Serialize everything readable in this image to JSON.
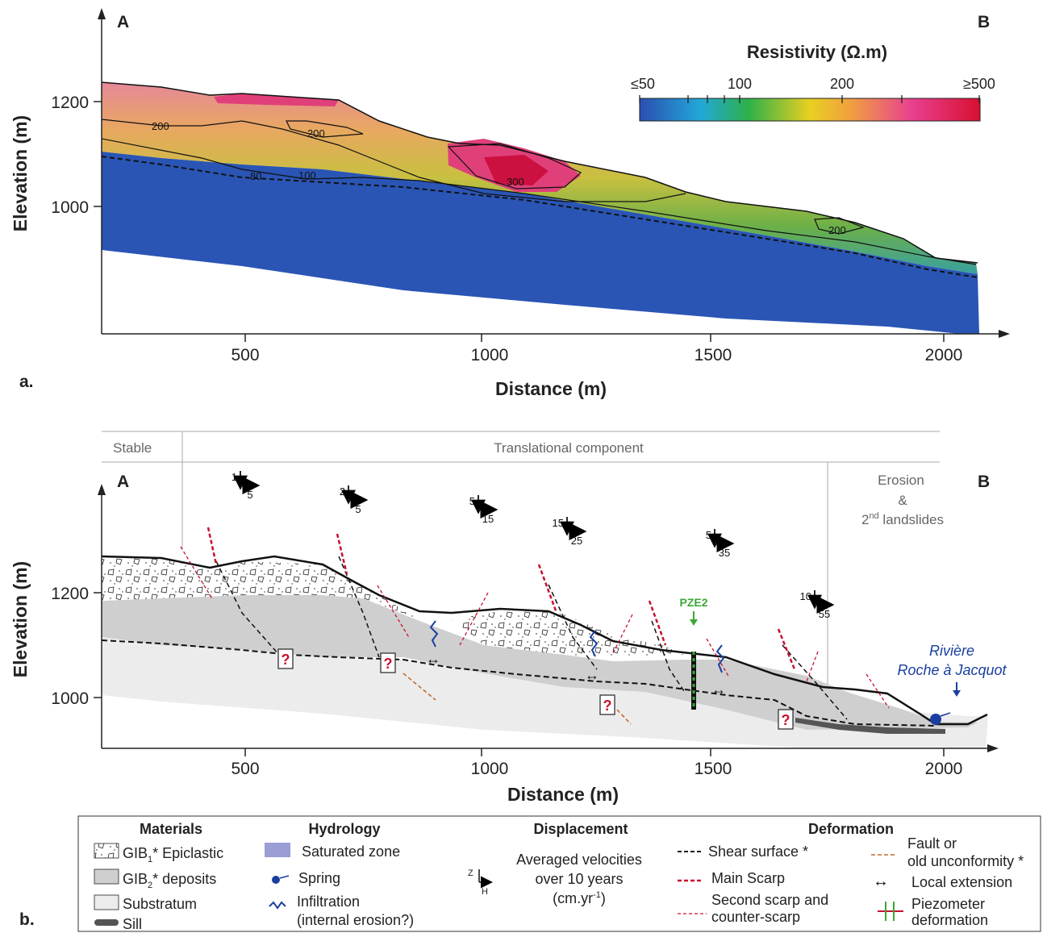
{
  "panel_a": {
    "panel_label": "a.",
    "end_a": "A",
    "end_b": "B",
    "y_axis_label": "Elevation (m)",
    "x_axis_label": "Distance (m)",
    "y_ticks": [
      "1200",
      "1000"
    ],
    "x_ticks": [
      "500",
      "1000",
      "1500",
      "2000"
    ],
    "colorbar": {
      "title": "Resistivity (Ω.m)",
      "tick_labels": [
        "≤50",
        "100",
        "200",
        "≥500"
      ],
      "colors": [
        "#2a4fb0",
        "#22a8d8",
        "#2eb04a",
        "#e8d020",
        "#f0a040",
        "#e84090",
        "#d81030"
      ]
    },
    "contour_labels": [
      "200",
      "200",
      "80",
      "100",
      "300",
      "200"
    ]
  },
  "panel_b": {
    "panel_label": "b.",
    "end_a": "A",
    "end_b": "B",
    "y_axis_label": "Elevation (m)",
    "x_axis_label": "Distance (m)",
    "y_ticks": [
      "1200",
      "1000"
    ],
    "x_ticks": [
      "500",
      "1000",
      "1500",
      "2000"
    ],
    "zones": {
      "stable": "Stable",
      "translational": "Translational component",
      "erosion_1": "Erosion",
      "erosion_2": "&",
      "erosion_3_super": "nd",
      "erosion_3_pre": "2",
      "erosion_3_post": " landslides"
    },
    "velocities": [
      {
        "z": "1",
        "h": "5"
      },
      {
        "z": "2",
        "h": "5"
      },
      {
        "z": "5",
        "h": "15"
      },
      {
        "z": "15",
        "h": "25"
      },
      {
        "z": "5",
        "h": "35"
      },
      {
        "z": "10",
        "h": "55"
      }
    ],
    "piezometer": "PZE2",
    "river_line1": "Rivière",
    "river_line2": "Roche à Jacquot",
    "question_mark": "?",
    "colors": {
      "gib2": "#cfcfcf",
      "substratum": "#ececec",
      "scarp": "#c8102e",
      "spring": "#1a3fa0",
      "piezometer": "#3aa835",
      "fault": "#c0682a"
    }
  },
  "legend": {
    "materials": {
      "title": "Materials",
      "gib1": "GIB",
      "gib1_sub": "1",
      "gib1_rest": "* Epiclastic",
      "gib2": "GIB",
      "gib2_sub": "2",
      "gib2_rest": "* deposits",
      "substratum": "Substratum",
      "sill": "Sill"
    },
    "hydrology": {
      "title": "Hydrology",
      "saturated": "Saturated zone",
      "spring": "Spring",
      "infiltration_1": "Infiltration",
      "infiltration_2": "(internal erosion?)"
    },
    "displacement": {
      "title": "Displacement",
      "line1": "Averaged velocities",
      "line2": "over 10 years",
      "line3_pre": "(cm.yr",
      "line3_sup": "-1",
      "line3_post": ")",
      "z": "Z",
      "h": "H"
    },
    "deformation": {
      "title": "Deformation",
      "shear": "Shear surface *",
      "main_scarp": "Main Scarp",
      "second_1": "Second scarp and",
      "second_2": "counter-scarp",
      "fault_1": "Fault or",
      "fault_2": "old unconformity *",
      "local_ext": "Local extension",
      "piezo_1": "Piezometer",
      "piezo_2": "deformation"
    }
  }
}
